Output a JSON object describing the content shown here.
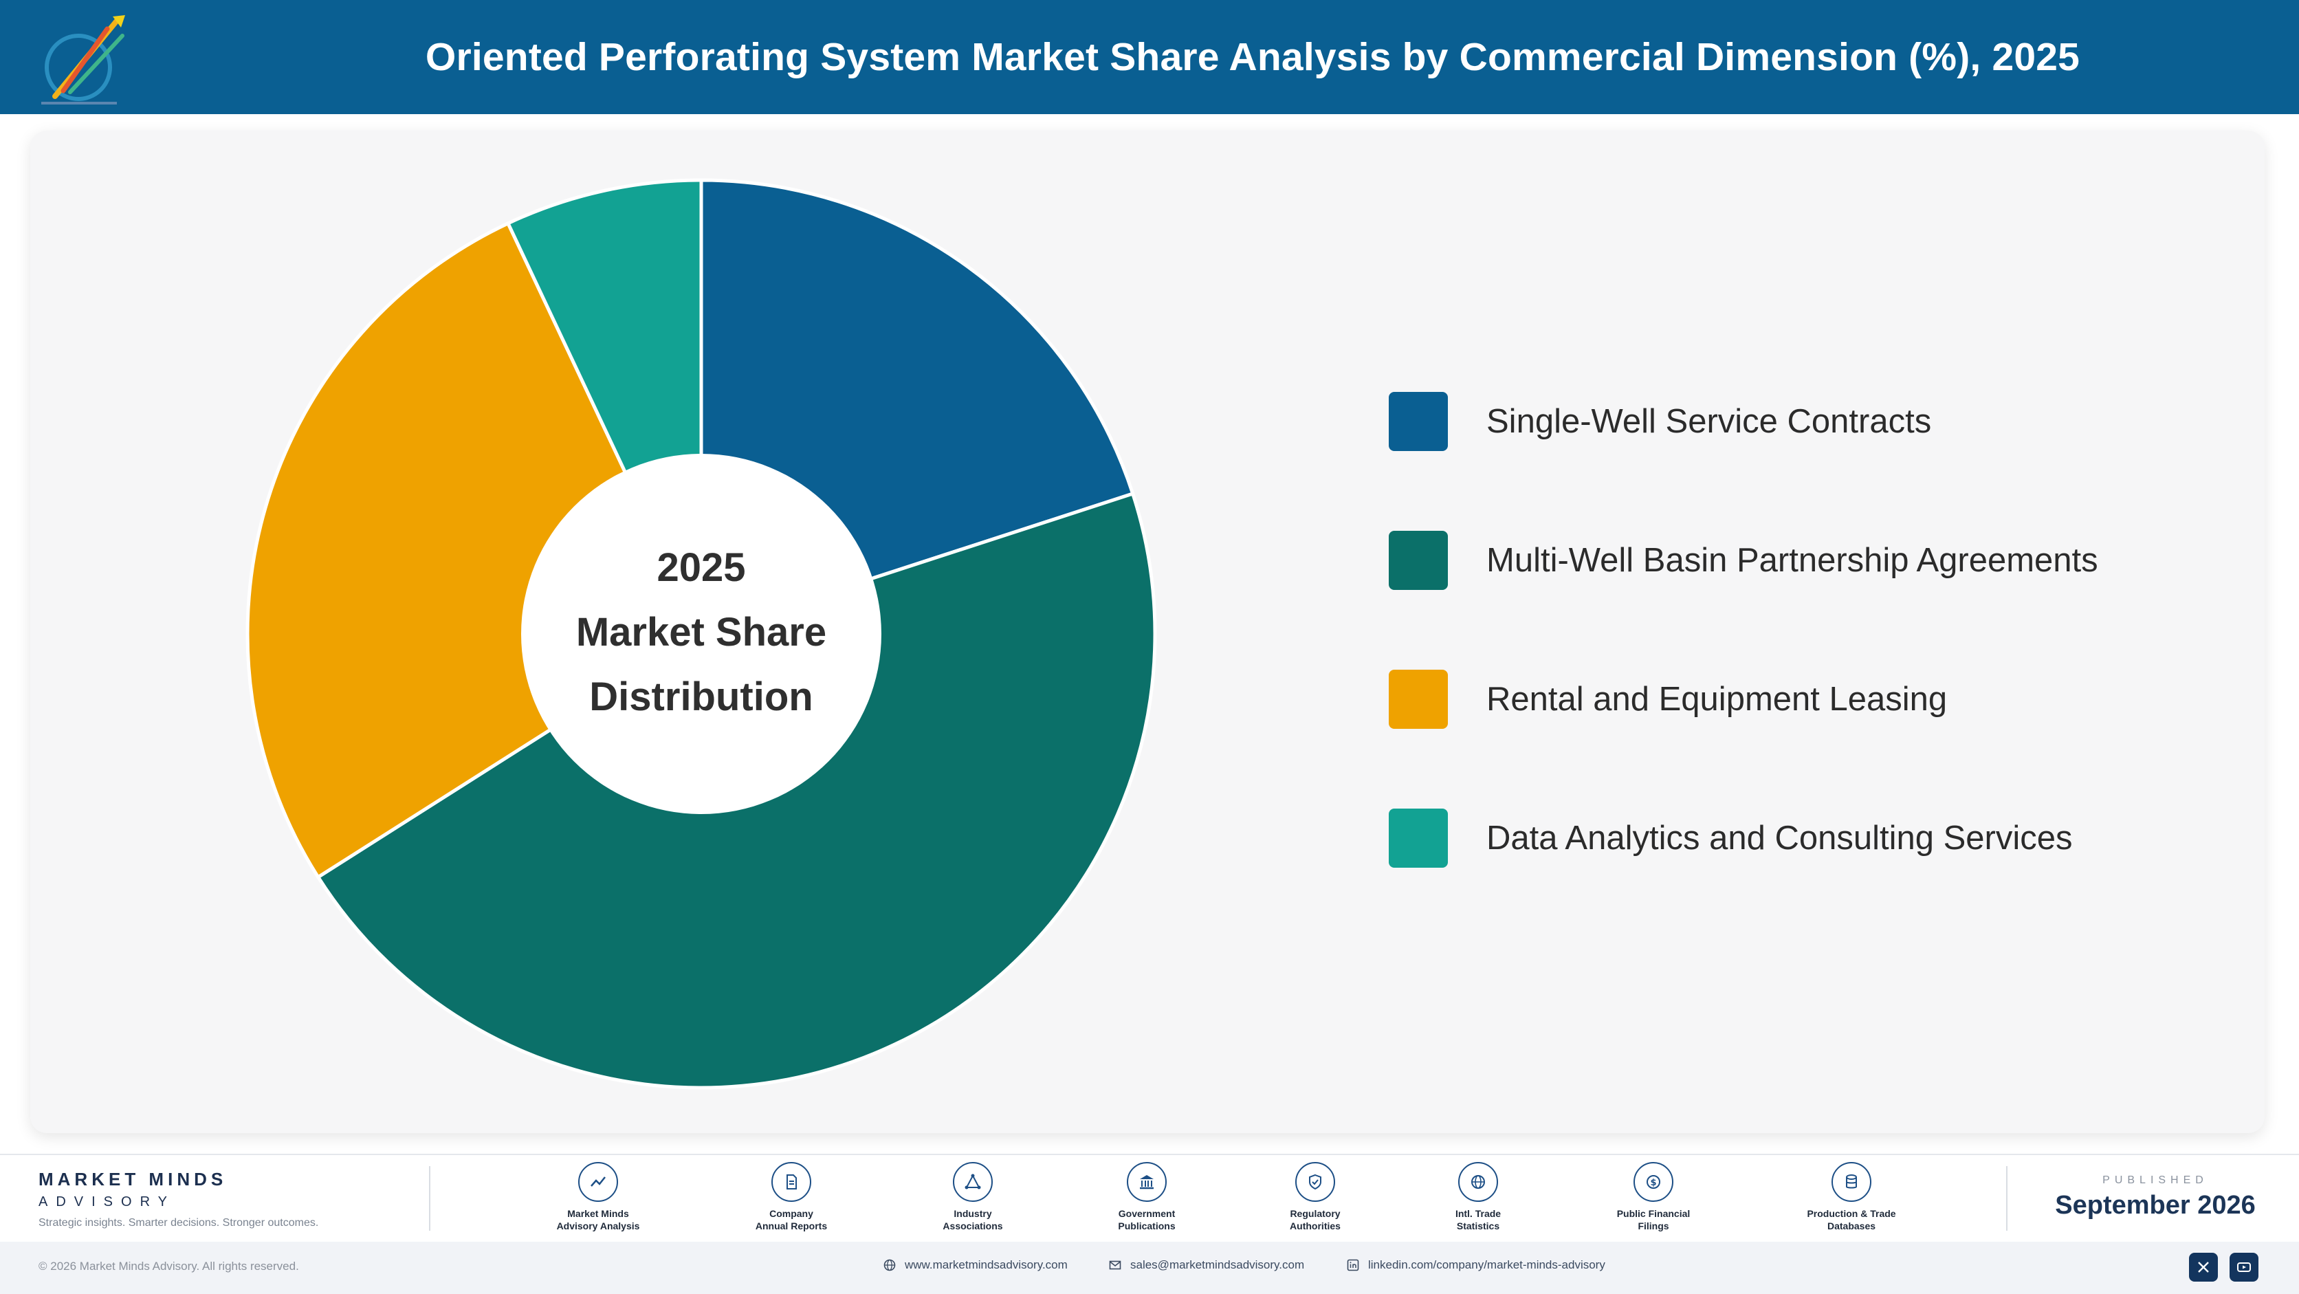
{
  "header": {
    "title": "Oriented Perforating System Market Share Analysis by Commercial Dimension (%), 2025",
    "logo_icon": "market-minds-logo-icon"
  },
  "chart_data": {
    "type": "pie",
    "donut": true,
    "center_label": [
      "2025",
      "Market Share",
      "Distribution"
    ],
    "categories": [
      "Single-Well Service Contracts",
      "Multi-Well Basin Partnership Agreements",
      "Rental and Equipment Leasing",
      "Data Analytics and Consulting Services"
    ],
    "values": [
      20,
      46,
      27,
      7
    ],
    "colors": [
      "#0a5f92",
      "#0b7069",
      "#efa200",
      "#12a293"
    ],
    "legend_position": "right"
  },
  "footer": {
    "brand_name": "MARKET MINDS",
    "brand_sub": "ADVISORY",
    "tagline": "Strategic insights. Smarter decisions. Stronger outcomes.",
    "sources": [
      {
        "label": "Market Minds\nAdvisory Analysis",
        "icon": "trend-line-icon"
      },
      {
        "label": "Company\nAnnual Reports",
        "icon": "document-icon"
      },
      {
        "label": "Industry\nAssociations",
        "icon": "network-icon"
      },
      {
        "label": "Government\nPublications",
        "icon": "government-building-icon"
      },
      {
        "label": "Regulatory\nAuthorities",
        "icon": "shield-check-icon"
      },
      {
        "label": "Intl. Trade\nStatistics",
        "icon": "globe-icon"
      },
      {
        "label": "Public Financial\nFilings",
        "icon": "dollar-coin-icon"
      },
      {
        "label": "Production & Trade\nDatabases",
        "icon": "database-icon"
      }
    ],
    "published_label": "PUBLISHED",
    "published_date": "September 2026",
    "copyright": "© 2026 Market Minds Advisory. All rights reserved.",
    "website": "www.marketmindsadvisory.com",
    "email": "sales@marketmindsadvisory.com",
    "linkedin": "linkedin.com/company/market-minds-advisory",
    "social_icons": [
      "x-icon",
      "youtube-icon"
    ]
  }
}
